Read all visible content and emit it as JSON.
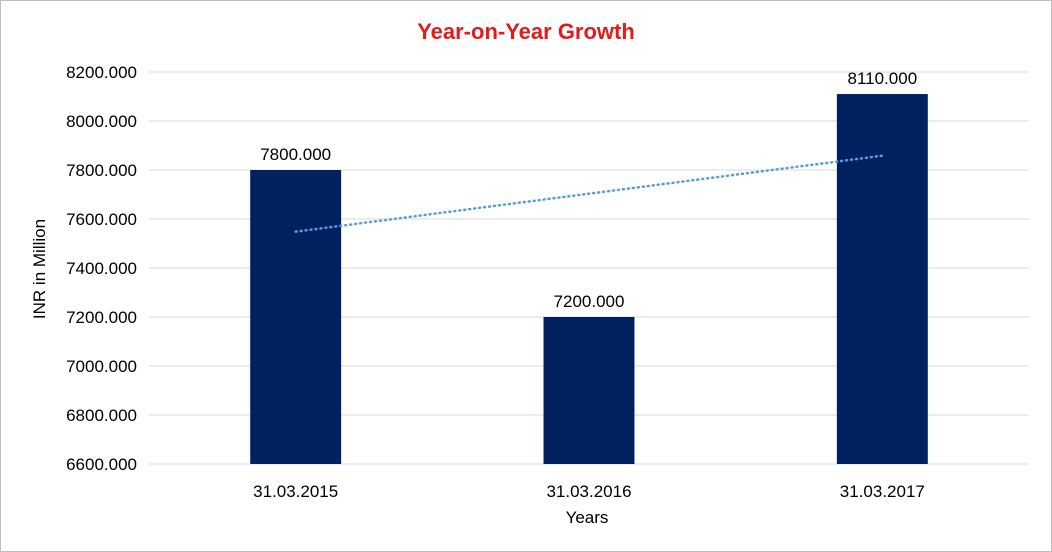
{
  "chart_data": {
    "type": "bar",
    "title": "Year-on-Year Growth",
    "xlabel": "Years",
    "ylabel": "INR in Million",
    "categories": [
      "31.03.2015",
      "31.03.2016",
      "31.03.2017"
    ],
    "values": [
      7800,
      7200,
      8110
    ],
    "data_labels": [
      "7800.000",
      "7200.000",
      "8110.000"
    ],
    "ylim": [
      6600,
      8200
    ],
    "yticks": [
      6600,
      6800,
      7000,
      7200,
      7400,
      7600,
      7800,
      8000,
      8200
    ],
    "ytick_labels": [
      "6600.000",
      "6800.000",
      "7000.000",
      "7200.000",
      "7400.000",
      "7600.000",
      "7800.000",
      "8000.000",
      "8200.000"
    ],
    "grid": true,
    "legend": "none",
    "trendline": {
      "type": "linear",
      "style": "dotted"
    },
    "colors": {
      "bar": "#002060",
      "title": "#e31b1b",
      "grid": "#d9d9d9",
      "trendline": "#5b9bd5"
    }
  }
}
